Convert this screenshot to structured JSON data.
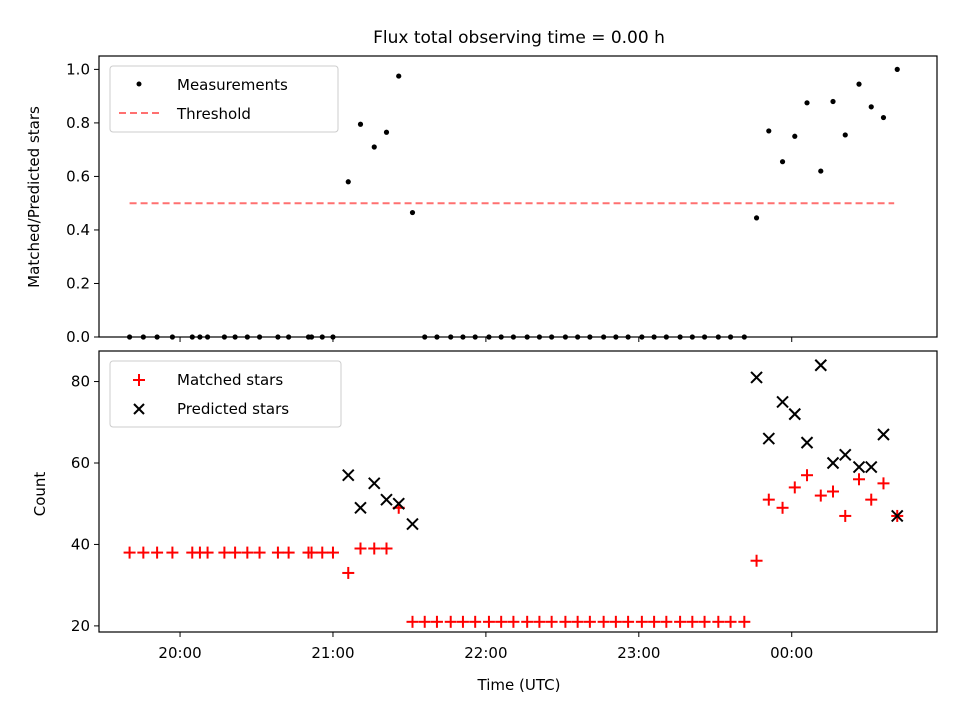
{
  "chart_data": [
    {
      "type": "scatter",
      "title": "Flux total observing time = 0.00 h",
      "ylabel": "Matched/Predicted stars",
      "xlabel": "",
      "xlim": [
        19.47,
        24.95
      ],
      "ylim": [
        0.0,
        1.05
      ],
      "yticks": [
        0.0,
        0.2,
        0.4,
        0.6,
        0.8,
        1.0
      ],
      "ytick_labels": [
        "0.0",
        "0.2",
        "0.4",
        "0.6",
        "0.8",
        "1.0"
      ],
      "xticks": [
        20,
        21,
        22,
        23,
        24
      ],
      "grid": false,
      "legend": {
        "position": "top-left",
        "entries": [
          "Measurements",
          "Threshold"
        ]
      },
      "series": [
        {
          "name": "Measurements",
          "marker": "dot",
          "color": "#000000",
          "points": [
            [
              19.67,
              0
            ],
            [
              19.76,
              0
            ],
            [
              19.85,
              0
            ],
            [
              19.95,
              0
            ],
            [
              20.08,
              0
            ],
            [
              20.13,
              0
            ],
            [
              20.18,
              0
            ],
            [
              20.29,
              0
            ],
            [
              20.36,
              0
            ],
            [
              20.44,
              0
            ],
            [
              20.52,
              0
            ],
            [
              20.64,
              0
            ],
            [
              20.71,
              0
            ],
            [
              20.84,
              0
            ],
            [
              20.86,
              0
            ],
            [
              20.93,
              0
            ],
            [
              21.0,
              0
            ],
            [
              21.1,
              0.58
            ],
            [
              21.18,
              0.795
            ],
            [
              21.27,
              0.71
            ],
            [
              21.35,
              0.765
            ],
            [
              21.43,
              0.975
            ],
            [
              21.52,
              0.465
            ],
            [
              21.6,
              0
            ],
            [
              21.68,
              0
            ],
            [
              21.77,
              0
            ],
            [
              21.85,
              0
            ],
            [
              21.93,
              0
            ],
            [
              22.02,
              0
            ],
            [
              22.1,
              0
            ],
            [
              22.18,
              0
            ],
            [
              22.27,
              0
            ],
            [
              22.35,
              0
            ],
            [
              22.43,
              0
            ],
            [
              22.52,
              0
            ],
            [
              22.6,
              0
            ],
            [
              22.68,
              0
            ],
            [
              22.77,
              0
            ],
            [
              22.85,
              0
            ],
            [
              22.93,
              0
            ],
            [
              23.02,
              0
            ],
            [
              23.1,
              0
            ],
            [
              23.18,
              0
            ],
            [
              23.27,
              0
            ],
            [
              23.35,
              0
            ],
            [
              23.43,
              0
            ],
            [
              23.52,
              0
            ],
            [
              23.6,
              0
            ],
            [
              23.69,
              0
            ],
            [
              23.77,
              0.445
            ],
            [
              23.85,
              0.77
            ],
            [
              23.94,
              0.655
            ],
            [
              24.02,
              0.75
            ],
            [
              24.1,
              0.875
            ],
            [
              24.19,
              0.62
            ],
            [
              24.27,
              0.88
            ],
            [
              24.35,
              0.755
            ],
            [
              24.44,
              0.945
            ],
            [
              24.52,
              0.86
            ],
            [
              24.6,
              0.82
            ],
            [
              24.69,
              1.0
            ]
          ]
        },
        {
          "name": "Threshold",
          "marker": "dashed-line",
          "color": "#ff7070",
          "points": [
            [
              19.67,
              0.5
            ],
            [
              24.67,
              0.5
            ]
          ]
        }
      ]
    },
    {
      "type": "scatter",
      "title": "",
      "ylabel": "Count",
      "xlabel": "Time (UTC)",
      "xlim": [
        19.47,
        24.95
      ],
      "ylim": [
        18.5,
        87.5
      ],
      "yticks": [
        20,
        40,
        60,
        80
      ],
      "ytick_labels": [
        "20",
        "40",
        "60",
        "80"
      ],
      "xticks": [
        20,
        21,
        22,
        23,
        24
      ],
      "xtick_labels": [
        "20:00",
        "21:00",
        "22:00",
        "23:00",
        "00:00"
      ],
      "grid": false,
      "legend": {
        "position": "top-left",
        "entries": [
          "Matched stars",
          "Predicted stars"
        ]
      },
      "series": [
        {
          "name": "Matched stars",
          "marker": "plus",
          "color": "#ff0000",
          "points": [
            [
              19.67,
              38
            ],
            [
              19.76,
              38
            ],
            [
              19.85,
              38
            ],
            [
              19.95,
              38
            ],
            [
              20.08,
              38
            ],
            [
              20.13,
              38
            ],
            [
              20.18,
              38
            ],
            [
              20.29,
              38
            ],
            [
              20.36,
              38
            ],
            [
              20.44,
              38
            ],
            [
              20.52,
              38
            ],
            [
              20.64,
              38
            ],
            [
              20.71,
              38
            ],
            [
              20.84,
              38
            ],
            [
              20.86,
              38
            ],
            [
              20.93,
              38
            ],
            [
              21.0,
              38
            ],
            [
              21.1,
              33
            ],
            [
              21.18,
              39
            ],
            [
              21.27,
              39
            ],
            [
              21.35,
              39
            ],
            [
              21.43,
              49
            ],
            [
              21.52,
              21
            ],
            [
              21.6,
              21
            ],
            [
              21.68,
              21
            ],
            [
              21.77,
              21
            ],
            [
              21.85,
              21
            ],
            [
              21.93,
              21
            ],
            [
              22.02,
              21
            ],
            [
              22.1,
              21
            ],
            [
              22.18,
              21
            ],
            [
              22.27,
              21
            ],
            [
              22.35,
              21
            ],
            [
              22.43,
              21
            ],
            [
              22.52,
              21
            ],
            [
              22.6,
              21
            ],
            [
              22.68,
              21
            ],
            [
              22.77,
              21
            ],
            [
              22.85,
              21
            ],
            [
              22.93,
              21
            ],
            [
              23.02,
              21
            ],
            [
              23.1,
              21
            ],
            [
              23.18,
              21
            ],
            [
              23.27,
              21
            ],
            [
              23.35,
              21
            ],
            [
              23.43,
              21
            ],
            [
              23.52,
              21
            ],
            [
              23.6,
              21
            ],
            [
              23.69,
              21
            ],
            [
              23.77,
              36
            ],
            [
              23.85,
              51
            ],
            [
              23.94,
              49
            ],
            [
              24.02,
              54
            ],
            [
              24.1,
              57
            ],
            [
              24.19,
              52
            ],
            [
              24.27,
              53
            ],
            [
              24.35,
              47
            ],
            [
              24.44,
              56
            ],
            [
              24.52,
              51
            ],
            [
              24.6,
              55
            ],
            [
              24.69,
              47
            ]
          ]
        },
        {
          "name": "Predicted stars",
          "marker": "x",
          "color": "#000000",
          "points": [
            [
              21.1,
              57
            ],
            [
              21.18,
              49
            ],
            [
              21.27,
              55
            ],
            [
              21.35,
              51
            ],
            [
              21.43,
              50
            ],
            [
              21.52,
              45
            ],
            [
              23.77,
              81
            ],
            [
              23.85,
              66
            ],
            [
              23.94,
              75
            ],
            [
              24.02,
              72
            ],
            [
              24.1,
              65
            ],
            [
              24.19,
              84
            ],
            [
              24.27,
              60
            ],
            [
              24.35,
              62
            ],
            [
              24.44,
              59
            ],
            [
              24.52,
              59
            ],
            [
              24.6,
              67
            ],
            [
              24.69,
              47
            ]
          ]
        }
      ]
    }
  ]
}
